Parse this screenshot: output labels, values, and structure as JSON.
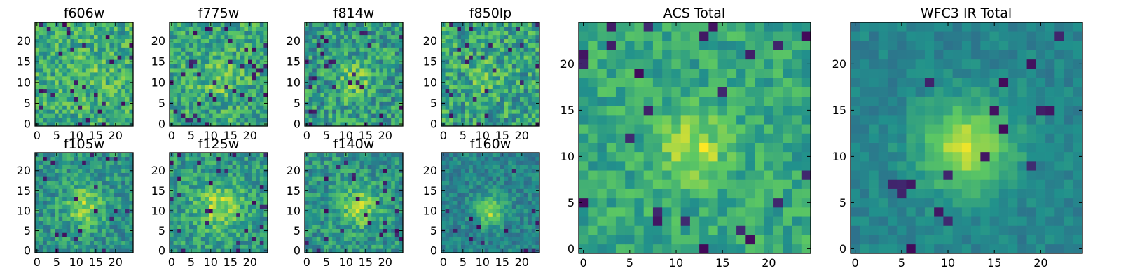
{
  "chart_data": {
    "type": "heatmap",
    "colormap": "viridis",
    "colormap_stops": [
      "#440154",
      "#3b528b",
      "#21918c",
      "#5ec962",
      "#fde725"
    ],
    "grid_size": [
      25,
      25
    ],
    "xlim": [
      -0.5,
      24.5
    ],
    "ylim": [
      -0.5,
      24.5
    ],
    "panels": [
      {
        "title": "f606w",
        "x_ticks": [
          0,
          5,
          10,
          15,
          20
        ],
        "y_ticks": [
          0,
          5,
          10,
          15,
          20
        ],
        "source": {
          "cx": 14,
          "cy": 12,
          "sigma": 3.5,
          "amplitude": 0.08
        },
        "noise": 0.42,
        "background": 0.62,
        "bad_pixel_fraction": 0.04,
        "seed": 11
      },
      {
        "title": "f775w",
        "x_ticks": [
          0,
          5,
          10,
          15,
          20
        ],
        "y_ticks": [
          0,
          5,
          10,
          15,
          20
        ],
        "source": {
          "cx": 12,
          "cy": 11,
          "sigma": 3.5,
          "amplitude": 0.15
        },
        "noise": 0.42,
        "background": 0.6,
        "bad_pixel_fraction": 0.05,
        "seed": 23
      },
      {
        "title": "f814w",
        "x_ticks": [
          0,
          5,
          10,
          15,
          20
        ],
        "y_ticks": [
          0,
          5,
          10,
          15,
          20
        ],
        "source": {
          "cx": 12,
          "cy": 11,
          "sigma": 3,
          "amplitude": 0.22
        },
        "noise": 0.45,
        "background": 0.55,
        "bad_pixel_fraction": 0.05,
        "seed": 37
      },
      {
        "title": "f850lp",
        "x_ticks": [
          0,
          5,
          10,
          15,
          20
        ],
        "y_ticks": [
          0,
          5,
          10,
          15,
          20
        ],
        "source": {
          "cx": 11,
          "cy": 11,
          "sigma": 3,
          "amplitude": 0.12
        },
        "noise": 0.45,
        "background": 0.58,
        "bad_pixel_fraction": 0.05,
        "seed": 41
      },
      {
        "title": "f105w",
        "x_ticks": [
          0,
          5,
          10,
          15,
          20
        ],
        "y_ticks": [
          0,
          5,
          10,
          15,
          20
        ],
        "source": {
          "cx": 12,
          "cy": 11,
          "sigma": 3.5,
          "amplitude": 0.3
        },
        "noise": 0.35,
        "background": 0.52,
        "bad_pixel_fraction": 0.04,
        "seed": 53
      },
      {
        "title": "f125w",
        "x_ticks": [
          0,
          5,
          10,
          15,
          20
        ],
        "y_ticks": [
          0,
          5,
          10,
          15,
          20
        ],
        "source": {
          "cx": 12,
          "cy": 11,
          "sigma": 4,
          "amplitude": 0.3
        },
        "noise": 0.35,
        "background": 0.55,
        "bad_pixel_fraction": 0.04,
        "seed": 67
      },
      {
        "title": "f140w",
        "x_ticks": [
          0,
          5,
          10,
          15,
          20
        ],
        "y_ticks": [
          0,
          5,
          10,
          15,
          20
        ],
        "source": {
          "cx": 13,
          "cy": 11,
          "sigma": 3.5,
          "amplitude": 0.3
        },
        "noise": 0.35,
        "background": 0.52,
        "bad_pixel_fraction": 0.04,
        "seed": 79
      },
      {
        "title": "f160w",
        "x_ticks": [
          0,
          5,
          10,
          15,
          20
        ],
        "y_ticks": [
          0,
          5,
          10,
          15,
          20
        ],
        "source": {
          "cx": 12,
          "cy": 10,
          "sigma": 2.5,
          "amplitude": 0.4
        },
        "noise": 0.25,
        "background": 0.45,
        "bad_pixel_fraction": 0.02,
        "seed": 83
      },
      {
        "title": "ACS Total",
        "x_ticks": [
          0,
          5,
          10,
          15,
          20
        ],
        "y_ticks": [
          0,
          5,
          10,
          15,
          20
        ],
        "source": {
          "cx": 12,
          "cy": 11,
          "sigma": 2.5,
          "amplitude": 0.3
        },
        "noise": 0.28,
        "background": 0.6,
        "bad_pixel_fraction": 0.04,
        "seed": 97
      },
      {
        "title": "WFC3 IR Total",
        "x_ticks": [
          0,
          5,
          10,
          15,
          20
        ],
        "y_ticks": [
          0,
          5,
          10,
          15,
          20
        ],
        "source": {
          "cx": 12,
          "cy": 11,
          "sigma": 3.5,
          "amplitude": 0.45
        },
        "noise": 0.15,
        "background": 0.45,
        "bad_pixel_fraction": 0.03,
        "seed": 101
      }
    ]
  }
}
